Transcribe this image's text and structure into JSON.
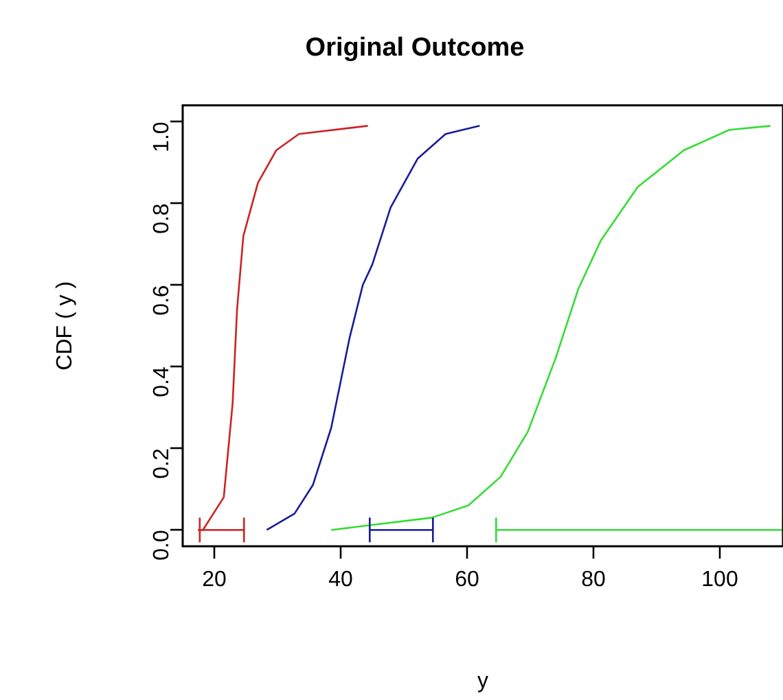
{
  "chart_data": {
    "type": "line",
    "title": "Original Outcome",
    "xlabel": "y",
    "ylabel": "CDF ( y )",
    "xlim": [
      15,
      110
    ],
    "xticks": [
      20,
      40,
      60,
      80,
      100
    ],
    "ylim": [
      -0.04,
      1.04
    ],
    "yticks": [
      {
        "value": 0,
        "label": "0.0"
      },
      {
        "value": 0.2,
        "label": "0.2"
      },
      {
        "value": 0.4,
        "label": "0.4"
      },
      {
        "value": 0.6,
        "label": "0.6"
      },
      {
        "value": 0.8,
        "label": "0.8"
      },
      {
        "value": 1,
        "label": "1.0"
      }
    ],
    "grid": false,
    "legend": false,
    "marker": "none",
    "line_style": "solid",
    "series": [
      {
        "color": "#cc2222",
        "x": [
          17.4,
          18.2,
          21.5,
          22.9,
          23.6,
          24.6,
          26.9,
          29.8,
          33.4,
          44.3
        ],
        "values": [
          0,
          0.0,
          0.08,
          0.31,
          0.54,
          0.72,
          0.85,
          0.93,
          0.97,
          0.99
        ]
      },
      {
        "color": "#1a1a99",
        "x": [
          28.3,
          32.7,
          35.6,
          38.5,
          41.4,
          43.5,
          45,
          47.9,
          52.2,
          56.6,
          62
        ],
        "values": [
          0,
          0.04,
          0.11,
          0.25,
          0.47,
          0.6,
          0.65,
          0.79,
          0.91,
          0.97,
          0.99
        ]
      },
      {
        "color": "#33dd33",
        "x": [
          38.5,
          54.4,
          60.2,
          65.3,
          69.6,
          74,
          77.6,
          81.2,
          87,
          94.3,
          101.5,
          108
        ],
        "values": [
          0,
          0.03,
          0.06,
          0.13,
          0.24,
          0.42,
          0.59,
          0.71,
          0.84,
          0.93,
          0.98,
          0.99
        ]
      },
      {
        "color": "#cc2222",
        "x": [
          17.7,
          24.7
        ],
        "values": [
          0,
          0
        ]
      },
      {
        "color": "#1a1a99",
        "x": [
          44.6,
          54.6
        ],
        "values": [
          0,
          0
        ]
      },
      {
        "color": "#33dd33",
        "x": [
          64.6,
          110
        ],
        "values": [
          0,
          0
        ]
      }
    ]
  }
}
